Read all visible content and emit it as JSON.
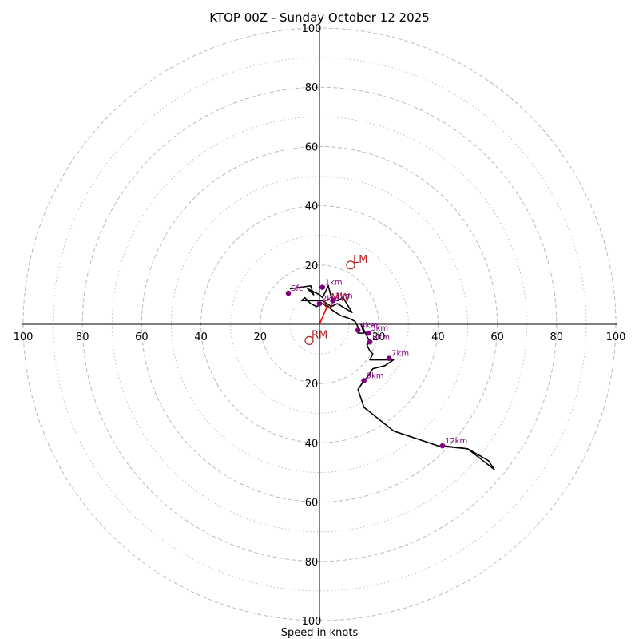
{
  "chart_data": {
    "type": "hodograph",
    "title": "KTOP 00Z - Sunday October 12 2025",
    "xlabel": "Speed in knots",
    "range": [
      -100,
      100
    ],
    "ring_major": [
      20,
      40,
      60,
      80,
      100
    ],
    "ring_minor": [
      10,
      30,
      50,
      70,
      90
    ],
    "tick_labels": {
      "top": [
        "100",
        "80",
        "60",
        "40",
        "20"
      ],
      "bottom": [
        "20",
        "40",
        "60",
        "80",
        "100"
      ],
      "left": [
        "100",
        "80",
        "60",
        "40",
        "20"
      ],
      "right": [
        "20",
        "40",
        "60",
        "80",
        "100"
      ]
    },
    "colors": {
      "trace": "#000000",
      "points": "#800080",
      "motion": "#b22222",
      "ring": "#bbbbbb"
    },
    "trace": [
      [
        -10,
        12
      ],
      [
        -3,
        13
      ],
      [
        -2,
        10
      ],
      [
        -4,
        12
      ],
      [
        0,
        10
      ],
      [
        1,
        9
      ],
      [
        3,
        13
      ],
      [
        4,
        9
      ],
      [
        6,
        8
      ],
      [
        8,
        9
      ],
      [
        11,
        4
      ],
      [
        6,
        7
      ],
      [
        4,
        6
      ],
      [
        1,
        8
      ],
      [
        -2,
        8
      ],
      [
        -5,
        8
      ],
      [
        -6,
        8
      ],
      [
        -5,
        9
      ],
      [
        -3,
        7
      ],
      [
        -1,
        6
      ],
      [
        1,
        7
      ],
      [
        3,
        6
      ],
      [
        4,
        5
      ],
      [
        7,
        3
      ],
      [
        10,
        2
      ],
      [
        12,
        1
      ],
      [
        13,
        -1
      ],
      [
        13,
        -3
      ],
      [
        15,
        -3
      ],
      [
        14,
        0
      ],
      [
        15,
        -2
      ],
      [
        16,
        -4
      ],
      [
        17,
        -6
      ],
      [
        16,
        -7
      ],
      [
        17,
        -9
      ],
      [
        18,
        -10
      ],
      [
        17,
        -12
      ],
      [
        18,
        -12
      ],
      [
        20,
        -12
      ],
      [
        24,
        -12
      ],
      [
        25,
        -12
      ],
      [
        22,
        -14
      ],
      [
        18,
        -15
      ],
      [
        16,
        -18
      ],
      [
        15,
        -19
      ],
      [
        13,
        -22
      ],
      [
        15,
        -28
      ],
      [
        25,
        -36
      ],
      [
        40,
        -41
      ],
      [
        50,
        -42
      ],
      [
        59,
        -49
      ],
      [
        57,
        -46
      ],
      [
        50,
        -42
      ],
      [
        42,
        -41
      ],
      [
        41,
        -41
      ]
    ],
    "points": [
      {
        "label": "Sfc",
        "u": -10.5,
        "v": 10.5
      },
      {
        "label": "1km",
        "u": 1.0,
        "v": 12.5
      },
      {
        "label": "2km",
        "u": 0.0,
        "v": 7.0
      },
      {
        "label": "3km",
        "u": 4.5,
        "v": 8.0
      },
      {
        "label": "4km",
        "u": 13.0,
        "v": -2.0
      },
      {
        "label": "5km",
        "u": 16.5,
        "v": -3.0
      },
      {
        "label": "6km",
        "u": 17.0,
        "v": -6.0
      },
      {
        "label": "7km",
        "u": 23.5,
        "v": -11.5
      },
      {
        "label": "9km",
        "u": 15.0,
        "v": -19.0
      },
      {
        "label": "12km",
        "u": 41.5,
        "v": -41.0
      }
    ],
    "motion": {
      "LM": {
        "u": 10.5,
        "v": 20.0
      },
      "RM": {
        "u": -3.5,
        "v": -5.5
      },
      "MW": {
        "u": 3.0,
        "v": 7.0
      },
      "shear_vector": [
        [
          0,
          0
        ],
        [
          3,
          7
        ]
      ]
    }
  }
}
